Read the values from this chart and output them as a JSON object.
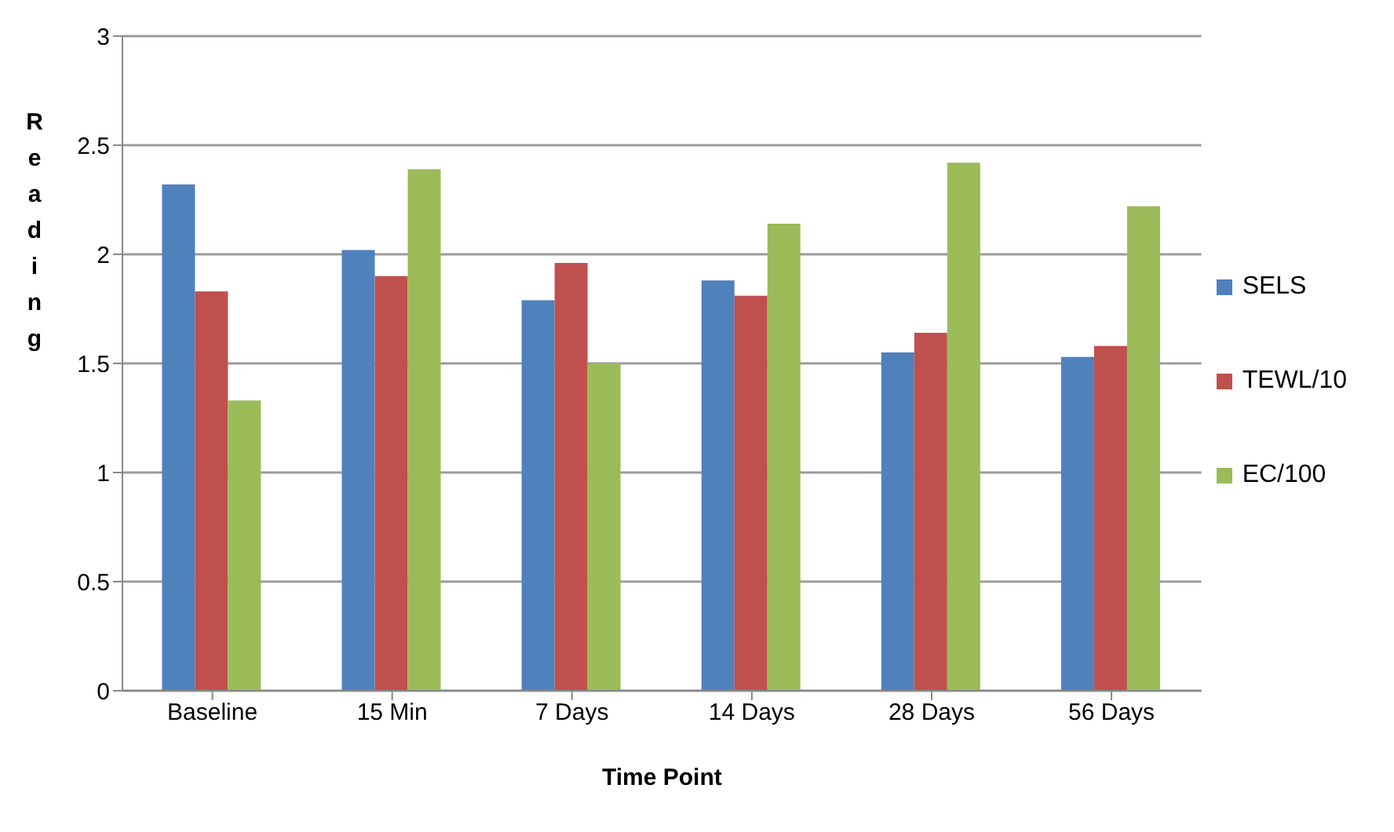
{
  "chart_data": {
    "type": "bar",
    "xlabel": "Time Point",
    "ylabel": "Reading",
    "categories": [
      "Baseline",
      "15 Min",
      "7 Days",
      "14 Days",
      "28 Days",
      "56 Days"
    ],
    "series": [
      {
        "name": "SELS",
        "color": "#4f81bd",
        "values": [
          2.32,
          2.02,
          1.79,
          1.88,
          1.55,
          1.53
        ]
      },
      {
        "name": "TEWL/10",
        "color": "#c0504d",
        "values": [
          1.83,
          1.9,
          1.96,
          1.81,
          1.64,
          1.58
        ]
      },
      {
        "name": "EC/100",
        "color": "#9bbb59",
        "values": [
          1.33,
          2.39,
          1.5,
          2.14,
          2.42,
          2.22
        ]
      }
    ],
    "ylim": [
      0,
      3
    ],
    "yticks": [
      0,
      0.5,
      1,
      1.5,
      2,
      2.5,
      3
    ],
    "grid": "y",
    "legend": "right"
  }
}
